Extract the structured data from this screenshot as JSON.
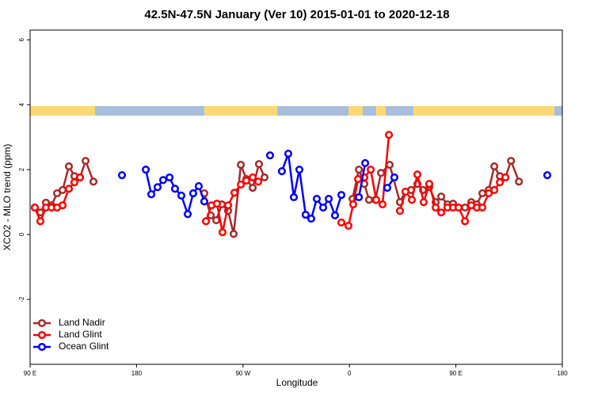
{
  "chart_data": {
    "type": "line",
    "title": "42.5N-47.5N January (Ver 10)   2015-01-01 to 2020-12-18",
    "x_label": "Longitude",
    "y_label": "XCO2 - MLO trend (ppm)",
    "xlim": [
      90,
      540
    ],
    "ylim": [
      -4,
      6.3
    ],
    "xticks": [
      {
        "value": 90,
        "label": "90 E"
      },
      {
        "value": 180,
        "label": "180"
      },
      {
        "value": 270,
        "label": "90 W"
      },
      {
        "value": 360,
        "label": "0"
      },
      {
        "value": 450,
        "label": "90 E"
      },
      {
        "value": 540,
        "label": "180"
      }
    ],
    "yticks": [
      -2,
      0,
      2,
      4,
      6
    ],
    "legend": "bottom-left",
    "series": [
      {
        "name": "Land Nadir",
        "color": "#a52a2a",
        "x": [
          94,
          98.7,
          103.4,
          108.1,
          112.8,
          117.5,
          122.8,
          127.5,
          132.2,
          136.9,
          143.6,
          null,
          237.3,
          242.7,
          247.4,
          252.1,
          257.4,
          262.1,
          268.2,
          272.8,
          278.2,
          283.5,
          288.2,
          null,
          362.6,
          368.0,
          372.6,
          376.6,
          382.0,
          386.7,
          394.0,
          402.7,
          407.4,
          412.1,
          417.5,
          422.2,
          427.5,
          432.9,
          437.6,
          442.9,
          447.6,
          452.3,
          457.7,
          463.0,
          467.7,
          472.4,
          477.8,
          482.5,
          487.2,
          491.9,
          496.6,
          503.3
        ],
        "values": [
          0.83,
          0.68,
          0.98,
          0.9,
          1.27,
          1.37,
          2.1,
          1.8,
          1.76,
          2.27,
          1.63,
          null,
          1.27,
          0.59,
          0.44,
          0.93,
          0.73,
          0.02,
          2.15,
          1.71,
          1.44,
          2.17,
          1.76,
          null,
          1.1,
          2.0,
          1.56,
          1.07,
          1.07,
          1.9,
          2.15,
          1.0,
          1.32,
          1.37,
          1.56,
          1.37,
          1.46,
          1.0,
          1.17,
          0.93,
          0.95,
          0.83,
          0.83,
          1.0,
          0.93,
          1.27,
          1.37,
          2.1,
          1.8,
          1.76,
          2.27,
          1.63
        ]
      },
      {
        "name": "Land Glint",
        "color": "#ff0000",
        "x": [
          94,
          98.7,
          103.4,
          108.1,
          112.8,
          117.5,
          122.8,
          127.5,
          132.2,
          null,
          238.7,
          243.4,
          248.0,
          252.7,
          257.4,
          262.8,
          268.2,
          272.8,
          278.2,
          282.9,
          null,
          353.2,
          359.2,
          363.2,
          367.3,
          372.6,
          378.0,
          382.6,
          388.0,
          393.4,
          null,
          402.7,
          407.4,
          412.8,
          417.5,
          422.8,
          427.5,
          432.9,
          437.6,
          442.9,
          447.6,
          452.3,
          457.7,
          463.0,
          467.7,
          472.4,
          477.8,
          482.5,
          487.2,
          491.9
        ],
        "values": [
          0.83,
          0.41,
          0.83,
          0.83,
          0.83,
          0.9,
          1.41,
          1.61,
          1.76,
          null,
          0.41,
          0.9,
          0.95,
          0.07,
          0.9,
          1.29,
          1.54,
          1.66,
          1.76,
          1.63,
          null,
          0.37,
          0.27,
          0.93,
          1.71,
          1.76,
          2.0,
          1.07,
          0.93,
          3.07,
          null,
          0.73,
          1.32,
          1.07,
          1.85,
          1.0,
          1.56,
          0.83,
          0.68,
          0.83,
          0.83,
          0.83,
          0.41,
          0.9,
          0.83,
          0.83,
          1.27,
          1.37,
          1.61,
          1.76
        ]
      },
      {
        "name": "Ocean Glint",
        "color": "#0000ff",
        "x": [
          167.7,
          null,
          187.8,
          192.5,
          197.8,
          202.5,
          207.9,
          212.5,
          217.9,
          223.3,
          227.9,
          232.6,
          237.3,
          null,
          292.9,
          null,
          302.9,
          308.3,
          313.0,
          317.7,
          323.0,
          327.7,
          332.4,
          337.8,
          342.5,
          347.8,
          353.2,
          null,
          368.0,
          373.3,
          null,
          392.0,
          398.0,
          null,
          527.3
        ],
        "values": [
          1.83,
          null,
          2.0,
          1.24,
          1.46,
          1.68,
          1.76,
          1.41,
          1.2,
          0.63,
          1.27,
          1.49,
          1.02,
          null,
          2.44,
          null,
          1.95,
          2.49,
          1.15,
          2.0,
          0.61,
          0.49,
          1.1,
          0.83,
          1.1,
          0.59,
          1.22,
          null,
          1.15,
          2.2,
          null,
          1.44,
          1.76,
          null,
          1.83
        ]
      }
    ]
  }
}
